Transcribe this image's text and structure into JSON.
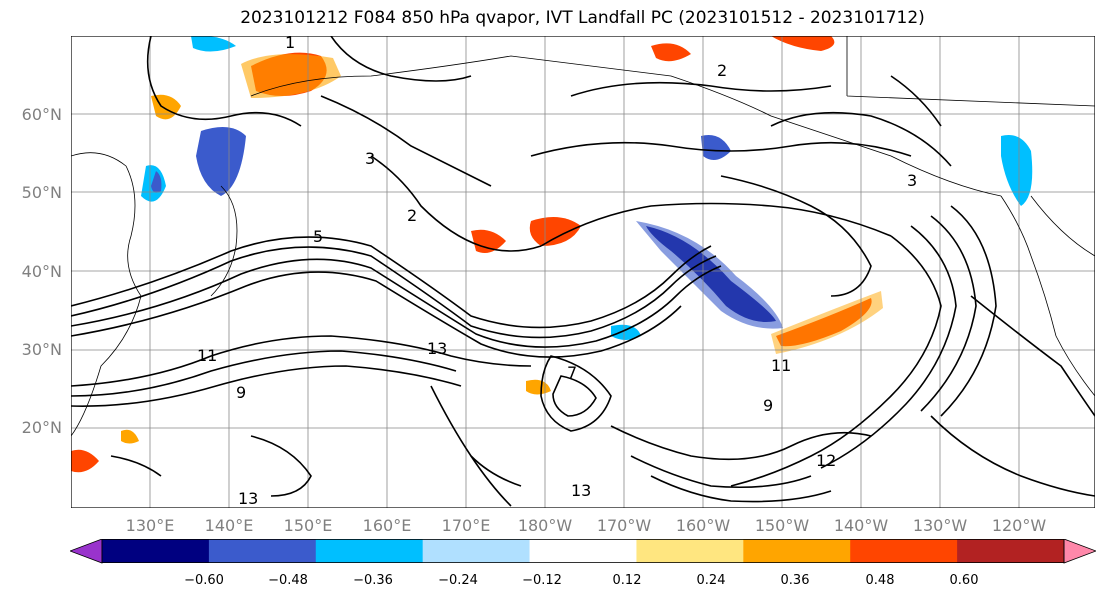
{
  "title": "2023101212 F084 850 hPa qvapor, IVT Landfall PC (2023101512 - 2023101712)",
  "lat_labels": [
    "60°N",
    "50°N",
    "40°N",
    "30°N",
    "20°N"
  ],
  "lon_labels": [
    "130°E",
    "140°E",
    "150°E",
    "160°E",
    "170°E",
    "180°W",
    "170°W",
    "160°W",
    "150°W",
    "140°W",
    "130°W",
    "120°W"
  ],
  "colorbar": {
    "ticks": [
      "−0.60",
      "−0.48",
      "−0.36",
      "−0.24",
      "−0.12",
      "0.12",
      "0.24",
      "0.36",
      "0.48",
      "0.60"
    ],
    "colors": [
      "#9933cc",
      "#000080",
      "#3b5bcc",
      "#00bfff",
      "#b0e0ff",
      "#ffffff",
      "#ffe680",
      "#ffa500",
      "#ff4500",
      "#b22222",
      "#ff88aa"
    ]
  },
  "contour_labels": [
    "1",
    "2",
    "3",
    "5",
    "7",
    "9",
    "11",
    "12",
    "13"
  ],
  "map": {
    "projection": "PlateCarree",
    "gridlines": true,
    "coastlines": true
  }
}
